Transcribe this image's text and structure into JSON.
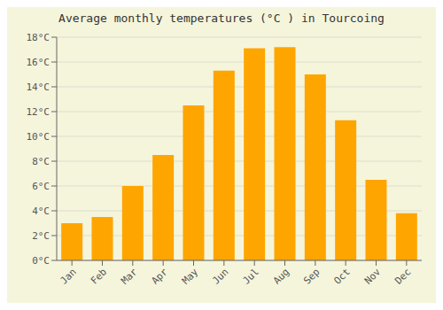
{
  "chart_data": {
    "type": "bar",
    "title": "Average monthly temperatures (°C ) in Tourcoing",
    "categories": [
      "Jan",
      "Feb",
      "Mar",
      "Apr",
      "May",
      "Jun",
      "Jul",
      "Aug",
      "Sep",
      "Oct",
      "Nov",
      "Dec"
    ],
    "values": [
      3.0,
      3.5,
      6.0,
      8.5,
      12.5,
      15.3,
      17.1,
      17.2,
      15.0,
      11.3,
      6.5,
      3.8
    ],
    "color": "#FFA500",
    "ylim": [
      0,
      18
    ],
    "yticks": [
      {
        "value": 0,
        "label": "0°C"
      },
      {
        "value": 2,
        "label": "2°C"
      },
      {
        "value": 4,
        "label": "4°C"
      },
      {
        "value": 6,
        "label": "6°C"
      },
      {
        "value": 8,
        "label": "8°C"
      },
      {
        "value": 10,
        "label": "10°C"
      },
      {
        "value": 12,
        "label": "12°C"
      },
      {
        "value": 14,
        "label": "14°C"
      },
      {
        "value": 16,
        "label": "16°C"
      },
      {
        "value": 18,
        "label": "18°C"
      }
    ],
    "grid": true
  }
}
